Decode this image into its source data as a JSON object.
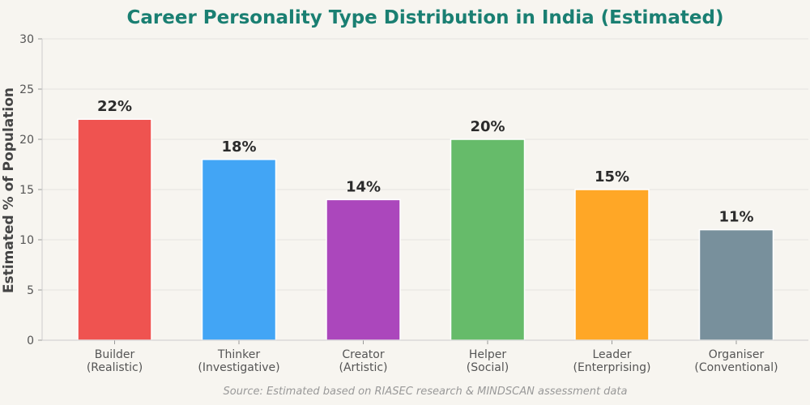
{
  "chart_data": {
    "type": "bar",
    "title": "Career Personality Type Distribution in India (Estimated)",
    "xlabel": "",
    "ylabel": "Estimated % of Population",
    "ylim": [
      0,
      30
    ],
    "yticks": [
      "0",
      "5",
      "10",
      "15",
      "20",
      "25",
      "30"
    ],
    "grid": true,
    "categories": [
      {
        "line1": "Builder",
        "line2": "(Realistic)"
      },
      {
        "line1": "Thinker",
        "line2": "(Investigative)"
      },
      {
        "line1": "Creator",
        "line2": "(Artistic)"
      },
      {
        "line1": "Helper",
        "line2": "(Social)"
      },
      {
        "line1": "Leader",
        "line2": "(Enterprising)"
      },
      {
        "line1": "Organiser",
        "line2": "(Conventional)"
      }
    ],
    "values": [
      22,
      18,
      14,
      20,
      15,
      11
    ],
    "data_labels": [
      "22%",
      "18%",
      "14%",
      "20%",
      "15%",
      "11%"
    ],
    "colors": [
      "#ef5350",
      "#42a5f5",
      "#ab47bc",
      "#66bb6a",
      "#ffa726",
      "#78909c"
    ],
    "source": "Source: Estimated based on RIASEC research & MINDSCAN assessment data"
  }
}
